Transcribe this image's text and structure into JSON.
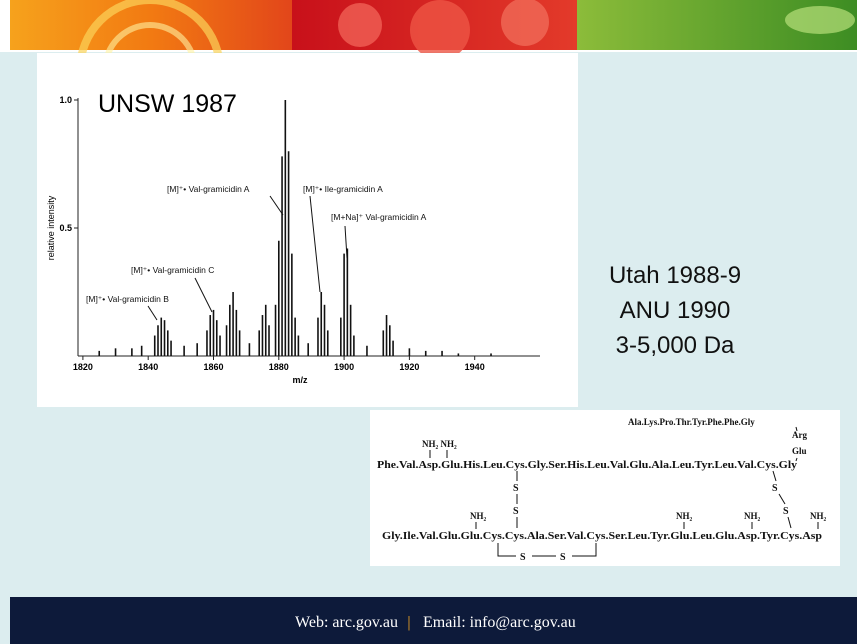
{
  "spectrum": {
    "title": "UNSW 1987",
    "y_label": "relative intensity",
    "x_label": "m/z",
    "xlim": [
      1818.5,
      1960
    ],
    "ylim": [
      0,
      1
    ],
    "xticks": [
      1820,
      1840,
      1860,
      1880,
      1900,
      1920,
      1940
    ],
    "yticks": [
      {
        "value": 0.5,
        "label": "0.5"
      },
      {
        "value": 1,
        "label": "1.0"
      }
    ],
    "annotations": [
      "[M]⁺• Val-gramicidin B",
      "[M]⁺• Val-gramicidin C",
      "[M]⁺• Val-gramicidin A",
      "[M]⁺• Ile-gramicidin A",
      "[M+Na]⁺ Val-gramicidin A"
    ],
    "peaks": {
      "x": [
        1825,
        1830,
        1835,
        1838,
        1842,
        1843,
        1844,
        1845,
        1846,
        1847,
        1851,
        1855,
        1858,
        1859,
        1860,
        1861,
        1862,
        1864,
        1865,
        1866,
        1867,
        1868,
        1871,
        1874,
        1875,
        1876,
        1877,
        1879,
        1880,
        1881,
        1882,
        1883,
        1884,
        1885,
        1886,
        1889,
        1892,
        1893,
        1894,
        1895,
        1899,
        1900,
        1901,
        1902,
        1903,
        1907,
        1912,
        1913,
        1914,
        1915,
        1920,
        1925,
        1930,
        1935,
        1945
      ],
      "y": [
        0.02,
        0.03,
        0.03,
        0.04,
        0.08,
        0.12,
        0.15,
        0.14,
        0.1,
        0.06,
        0.04,
        0.05,
        0.1,
        0.16,
        0.18,
        0.14,
        0.08,
        0.12,
        0.2,
        0.25,
        0.18,
        0.1,
        0.05,
        0.1,
        0.16,
        0.2,
        0.12,
        0.2,
        0.45,
        0.78,
        1.0,
        0.8,
        0.4,
        0.15,
        0.08,
        0.05,
        0.15,
        0.25,
        0.2,
        0.1,
        0.15,
        0.4,
        0.42,
        0.2,
        0.08,
        0.04,
        0.1,
        0.16,
        0.12,
        0.06,
        0.03,
        0.02,
        0.02,
        0.01,
        0.01
      ]
    }
  },
  "side_text": [
    "Utah 1988-9",
    "ANU 1990",
    "3-5,000 Da"
  ],
  "structure": {
    "lines": [
      "Ala.Lys.Pro.Thr.Tyr.Phe.Phe.Gly",
      "Arg",
      "Glu",
      "NH₂ NH₂",
      "Phe.Val.Asp.Glu.His.Leu.Cys.Gly.Ser.His.Leu.Val.Glu.Ala.Leu.Tyr.Leu.Val.Cys.Gly",
      "Gly.Ile.Val.Glu.Glu.Cys.Cys.Ala.Ser.Val.Cys.Ser.Leu.Tyr.Glu.Leu.Glu.Asp.Tyr.Cys.Asp"
    ],
    "amines": [
      "NH₂",
      "NH₂",
      "NH₂",
      "NH₂"
    ],
    "sulfurs": [
      "S",
      "S",
      "S",
      "S",
      "S",
      "S"
    ]
  },
  "footer": {
    "web": "Web: arc.gov.au",
    "separator": "|",
    "email": "Email: info@arc.gov.au"
  }
}
